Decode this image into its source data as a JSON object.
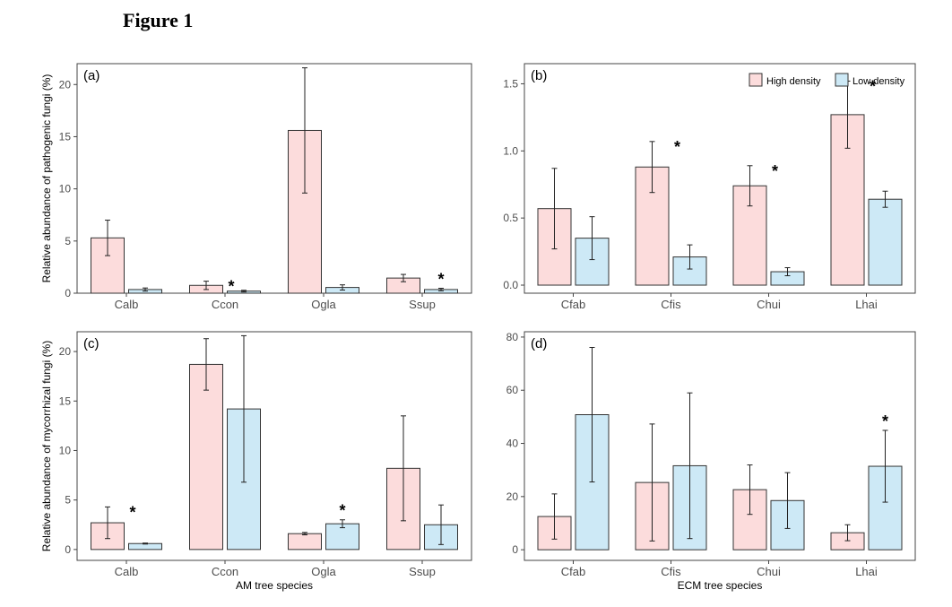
{
  "figure_title": "Figure 1",
  "colors": {
    "high": "#fcdcdc",
    "low": "#cde9f6",
    "stroke": "#333333",
    "axis": "#444444"
  },
  "chart_data": [
    {
      "type": "bar",
      "panel_label": "(a)",
      "categories": [
        "Calb",
        "Ccon",
        "Ogla",
        "Ssup"
      ],
      "ylim": [
        0,
        22
      ],
      "yticks": [
        0,
        5,
        10,
        15,
        20
      ],
      "ytick_labels": [
        "0",
        "5",
        "10",
        "15",
        "20"
      ],
      "ylabel": "Relative abundance of pathogenic fungi (%)",
      "xlabel": "",
      "series": [
        {
          "name": "High density",
          "values": [
            5.3,
            0.75,
            15.6,
            1.45
          ],
          "err": [
            1.7,
            0.4,
            6.0,
            0.35
          ]
        },
        {
          "name": "Low density",
          "values": [
            0.35,
            0.2,
            0.55,
            0.35
          ],
          "err": [
            0.15,
            0.08,
            0.25,
            0.12
          ]
        }
      ],
      "significance": [
        0,
        1,
        0,
        2
      ],
      "sig_label": "*"
    },
    {
      "type": "bar",
      "panel_label": "(b)",
      "categories": [
        "Cfab",
        "Cfis",
        "Chui",
        "Lhai"
      ],
      "ylim": [
        -0.06,
        1.65
      ],
      "yticks": [
        0,
        0.5,
        1.0,
        1.5
      ],
      "ytick_labels": [
        "0.0",
        "0.5",
        "1.0",
        "1.5"
      ],
      "ylabel": "",
      "xlabel": "",
      "series": [
        {
          "name": "High density",
          "values": [
            0.57,
            0.88,
            0.74,
            1.27
          ],
          "err": [
            0.3,
            0.19,
            0.15,
            0.25
          ]
        },
        {
          "name": "Low density",
          "values": [
            0.35,
            0.21,
            0.1,
            0.64
          ],
          "err": [
            0.16,
            0.09,
            0.03,
            0.06
          ]
        }
      ],
      "significance": [
        0,
        1,
        1,
        1
      ],
      "sig_label": "*",
      "legend": {
        "entries": [
          "High density",
          "Low density"
        ],
        "position": "top-right"
      }
    },
    {
      "type": "bar",
      "panel_label": "(c)",
      "categories": [
        "Calb",
        "Ccon",
        "Ogla",
        "Ssup"
      ],
      "ylim": [
        -1.1,
        22
      ],
      "yticks": [
        0,
        5,
        10,
        15,
        20
      ],
      "ytick_labels": [
        "0",
        "5",
        "10",
        "15",
        "20"
      ],
      "ylabel": "Relative abundance of mycorrhizal fungi (%)",
      "xlabel": "AM tree species",
      "series": [
        {
          "name": "High density",
          "values": [
            2.7,
            18.7,
            1.6,
            8.2
          ],
          "err": [
            1.6,
            2.6,
            0.12,
            5.3
          ]
        },
        {
          "name": "Low density",
          "values": [
            0.6,
            14.2,
            2.6,
            2.5
          ],
          "err": [
            0.05,
            7.4,
            0.4,
            2.0
          ]
        }
      ],
      "significance": [
        1,
        0,
        1,
        0
      ],
      "sig_label": "*"
    },
    {
      "type": "bar",
      "panel_label": "(d)",
      "categories": [
        "Cfab",
        "Cfis",
        "Chui",
        "Lhai"
      ],
      "ylim": [
        -4,
        82
      ],
      "yticks": [
        0,
        20,
        40,
        60,
        80
      ],
      "ytick_labels": [
        "0",
        "20",
        "40",
        "60",
        "80"
      ],
      "ylabel": "",
      "xlabel": "ECM tree species",
      "series": [
        {
          "name": "High density",
          "values": [
            12.5,
            25.3,
            22.6,
            6.4
          ],
          "err": [
            8.5,
            22.0,
            9.3,
            3.0
          ]
        },
        {
          "name": "Low density",
          "values": [
            50.8,
            31.6,
            18.5,
            31.4
          ],
          "err": [
            25.3,
            27.4,
            10.5,
            13.5
          ]
        }
      ],
      "significance": [
        0,
        0,
        0,
        1
      ],
      "sig_label": "*"
    }
  ]
}
